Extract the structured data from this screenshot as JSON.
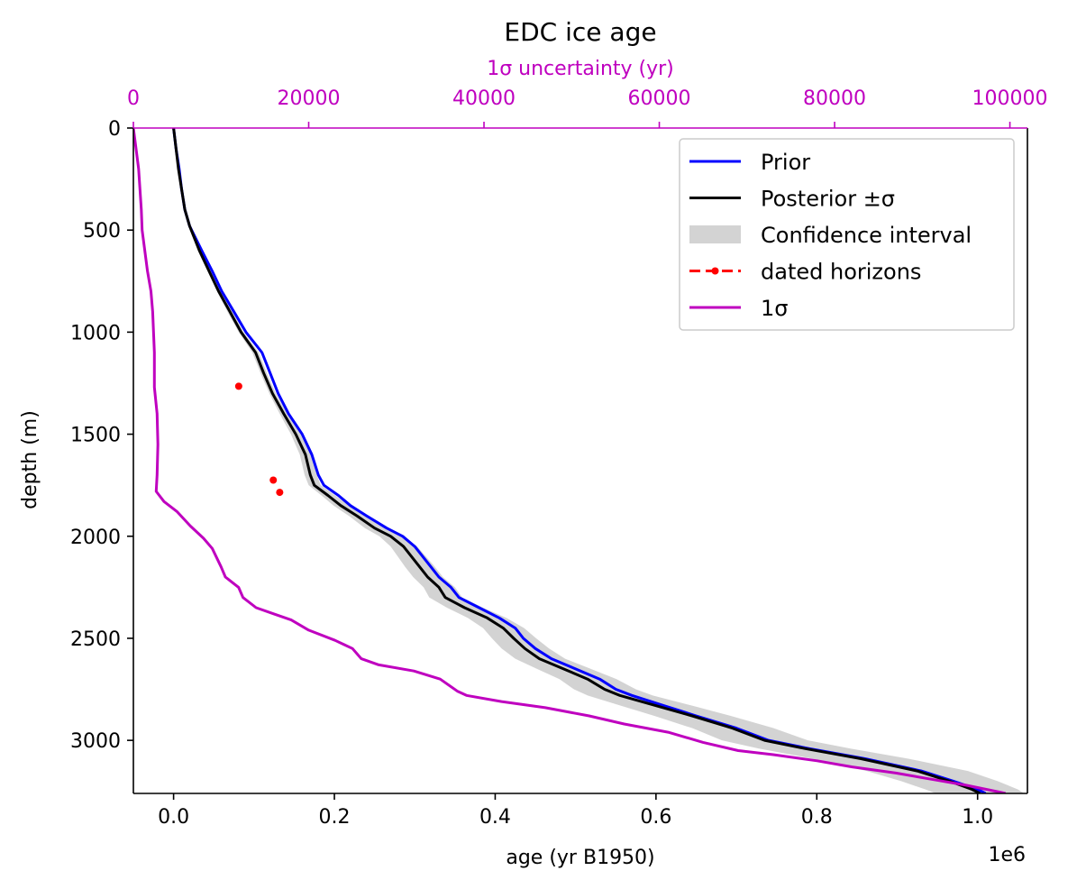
{
  "chart_data": {
    "type": "line",
    "title": "EDC ice age",
    "xlabel": "age (yr B1950)",
    "x_offset_label": "1e6",
    "ylabel": "depth (m)",
    "top_xlabel": "1σ uncertainty (yr)",
    "xlim": [
      -50000,
      1062000
    ],
    "ylim": [
      3260,
      0
    ],
    "top_xlim": [
      0,
      102000
    ],
    "x_ticks": [
      0,
      200000,
      400000,
      600000,
      800000,
      1000000
    ],
    "x_tick_labels": [
      "0.0",
      "0.2",
      "0.4",
      "0.6",
      "0.8",
      "1.0"
    ],
    "y_ticks": [
      0,
      500,
      1000,
      1500,
      2000,
      2500,
      3000
    ],
    "y_tick_labels": [
      "0",
      "500",
      "1000",
      "1500",
      "2000",
      "2500",
      "3000"
    ],
    "top_ticks": [
      0,
      20000,
      40000,
      60000,
      80000,
      100000
    ],
    "top_tick_labels": [
      "0",
      "20000",
      "40000",
      "60000",
      "80000",
      "100000"
    ],
    "colors": {
      "prior": "#0000ff",
      "posterior": "#000000",
      "confidence": "#d3d3d3",
      "horizons": "#ff0000",
      "sigma": "#bf00bf",
      "top_axis": "#bf00bf"
    },
    "legend_position": "top-right",
    "legend": [
      "Prior",
      "Posterior ±σ",
      "Confidence interval",
      "dated horizons",
      "1σ"
    ],
    "series": [
      {
        "name": "Prior",
        "axis": "bottom",
        "points": [
          [
            0,
            0
          ],
          [
            3000,
            100
          ],
          [
            7000,
            200
          ],
          [
            10000,
            300
          ],
          [
            14000,
            400
          ],
          [
            20000,
            480
          ],
          [
            35000,
            600
          ],
          [
            48000,
            700
          ],
          [
            60000,
            800
          ],
          [
            75000,
            900
          ],
          [
            90000,
            1000
          ],
          [
            110000,
            1100
          ],
          [
            120000,
            1200
          ],
          [
            130000,
            1300
          ],
          [
            143000,
            1400
          ],
          [
            160000,
            1500
          ],
          [
            172000,
            1600
          ],
          [
            180000,
            1700
          ],
          [
            187000,
            1750
          ],
          [
            205000,
            1800
          ],
          [
            220000,
            1850
          ],
          [
            240000,
            1900
          ],
          [
            265000,
            1960
          ],
          [
            285000,
            2000
          ],
          [
            300000,
            2050
          ],
          [
            310000,
            2100
          ],
          [
            320000,
            2150
          ],
          [
            330000,
            2200
          ],
          [
            345000,
            2250
          ],
          [
            355000,
            2300
          ],
          [
            380000,
            2350
          ],
          [
            405000,
            2400
          ],
          [
            425000,
            2450
          ],
          [
            435000,
            2500
          ],
          [
            450000,
            2550
          ],
          [
            470000,
            2600
          ],
          [
            500000,
            2650
          ],
          [
            530000,
            2700
          ],
          [
            550000,
            2750
          ],
          [
            570000,
            2780
          ],
          [
            610000,
            2830
          ],
          [
            650000,
            2880
          ],
          [
            700000,
            2940
          ],
          [
            740000,
            3000
          ],
          [
            790000,
            3040
          ],
          [
            860000,
            3090
          ],
          [
            930000,
            3150
          ],
          [
            970000,
            3200
          ],
          [
            1000000,
            3240
          ],
          [
            1010000,
            3260
          ]
        ]
      },
      {
        "name": "Posterior ±σ",
        "axis": "bottom",
        "points": [
          [
            0,
            0
          ],
          [
            3000,
            100
          ],
          [
            6000,
            200
          ],
          [
            10000,
            300
          ],
          [
            14000,
            400
          ],
          [
            20000,
            480
          ],
          [
            32000,
            600
          ],
          [
            44000,
            700
          ],
          [
            56000,
            800
          ],
          [
            70000,
            900
          ],
          [
            84000,
            1000
          ],
          [
            102000,
            1100
          ],
          [
            112000,
            1200
          ],
          [
            123000,
            1300
          ],
          [
            137000,
            1400
          ],
          [
            152000,
            1500
          ],
          [
            164000,
            1600
          ],
          [
            170000,
            1700
          ],
          [
            175000,
            1750
          ],
          [
            192000,
            1800
          ],
          [
            208000,
            1850
          ],
          [
            228000,
            1900
          ],
          [
            250000,
            1960
          ],
          [
            270000,
            2000
          ],
          [
            286000,
            2050
          ],
          [
            296000,
            2100
          ],
          [
            306000,
            2150
          ],
          [
            316000,
            2200
          ],
          [
            330000,
            2250
          ],
          [
            338000,
            2300
          ],
          [
            362000,
            2350
          ],
          [
            390000,
            2400
          ],
          [
            410000,
            2450
          ],
          [
            423000,
            2500
          ],
          [
            437000,
            2550
          ],
          [
            455000,
            2600
          ],
          [
            485000,
            2650
          ],
          [
            515000,
            2700
          ],
          [
            536000,
            2750
          ],
          [
            555000,
            2780
          ],
          [
            600000,
            2830
          ],
          [
            645000,
            2880
          ],
          [
            695000,
            2940
          ],
          [
            735000,
            3000
          ],
          [
            785000,
            3040
          ],
          [
            855000,
            3090
          ],
          [
            925000,
            3150
          ],
          [
            965000,
            3200
          ],
          [
            993000,
            3240
          ],
          [
            1003000,
            3260
          ]
        ]
      },
      {
        "name": "Confidence interval",
        "axis": "bottom",
        "lower": [
          [
            0,
            0
          ],
          [
            3000,
            100
          ],
          [
            6000,
            200
          ],
          [
            9000,
            300
          ],
          [
            13000,
            400
          ],
          [
            19000,
            480
          ],
          [
            30000,
            600
          ],
          [
            42000,
            700
          ],
          [
            54000,
            800
          ],
          [
            67000,
            900
          ],
          [
            81000,
            1000
          ],
          [
            98000,
            1100
          ],
          [
            108000,
            1200
          ],
          [
            119000,
            1300
          ],
          [
            132000,
            1400
          ],
          [
            146000,
            1500
          ],
          [
            157000,
            1600
          ],
          [
            163000,
            1700
          ],
          [
            168000,
            1750
          ],
          [
            184000,
            1800
          ],
          [
            199000,
            1850
          ],
          [
            218000,
            1900
          ],
          [
            238000,
            1960
          ],
          [
            256000,
            2000
          ],
          [
            270000,
            2050
          ],
          [
            279000,
            2100
          ],
          [
            288000,
            2150
          ],
          [
            298000,
            2200
          ],
          [
            311000,
            2250
          ],
          [
            318000,
            2300
          ],
          [
            340000,
            2350
          ],
          [
            366000,
            2400
          ],
          [
            385000,
            2450
          ],
          [
            396000,
            2500
          ],
          [
            408000,
            2550
          ],
          [
            425000,
            2600
          ],
          [
            452000,
            2650
          ],
          [
            480000,
            2700
          ],
          [
            498000,
            2750
          ],
          [
            515000,
            2780
          ],
          [
            556000,
            2830
          ],
          [
            598000,
            2880
          ],
          [
            645000,
            2940
          ],
          [
            682000,
            3000
          ],
          [
            728000,
            3040
          ],
          [
            795000,
            3090
          ],
          [
            862000,
            3150
          ],
          [
            905000,
            3200
          ],
          [
            935000,
            3240
          ],
          [
            948000,
            3260
          ]
        ],
        "upper": [
          [
            0,
            0
          ],
          [
            3000,
            100
          ],
          [
            7000,
            200
          ],
          [
            11000,
            300
          ],
          [
            15000,
            400
          ],
          [
            21000,
            480
          ],
          [
            34000,
            600
          ],
          [
            46000,
            700
          ],
          [
            58000,
            800
          ],
          [
            73000,
            900
          ],
          [
            87000,
            1000
          ],
          [
            106000,
            1100
          ],
          [
            116000,
            1200
          ],
          [
            127000,
            1300
          ],
          [
            142000,
            1400
          ],
          [
            158000,
            1500
          ],
          [
            171000,
            1600
          ],
          [
            178000,
            1700
          ],
          [
            183000,
            1750
          ],
          [
            201000,
            1800
          ],
          [
            218000,
            1850
          ],
          [
            239000,
            1900
          ],
          [
            263000,
            1960
          ],
          [
            285000,
            2000
          ],
          [
            303000,
            2050
          ],
          [
            314000,
            2100
          ],
          [
            325000,
            2150
          ],
          [
            335000,
            2200
          ],
          [
            350000,
            2250
          ],
          [
            359000,
            2300
          ],
          [
            385000,
            2350
          ],
          [
            414000,
            2400
          ],
          [
            436000,
            2450
          ],
          [
            451000,
            2500
          ],
          [
            467000,
            2550
          ],
          [
            487000,
            2600
          ],
          [
            519000,
            2650
          ],
          [
            551000,
            2700
          ],
          [
            575000,
            2750
          ],
          [
            596000,
            2780
          ],
          [
            645000,
            2830
          ],
          [
            693000,
            2880
          ],
          [
            746000,
            2940
          ],
          [
            789000,
            3000
          ],
          [
            842000,
            3040
          ],
          [
            914000,
            3090
          ],
          [
            988000,
            3150
          ],
          [
            1025000,
            3200
          ],
          [
            1050000,
            3240
          ],
          [
            1058000,
            3260
          ]
        ]
      },
      {
        "name": "dated horizons",
        "axis": "bottom",
        "points": [
          [
            81000,
            1265
          ],
          [
            124000,
            1725
          ],
          [
            132000,
            1785
          ]
        ]
      },
      {
        "name": "1σ",
        "axis": "top",
        "points": [
          [
            0,
            0
          ],
          [
            300,
            100
          ],
          [
            600,
            200
          ],
          [
            900,
            400
          ],
          [
            1000,
            500
          ],
          [
            1600,
            700
          ],
          [
            2000,
            800
          ],
          [
            2200,
            900
          ],
          [
            2400,
            1100
          ],
          [
            2400,
            1270
          ],
          [
            2700,
            1400
          ],
          [
            2800,
            1550
          ],
          [
            2700,
            1700
          ],
          [
            2600,
            1780
          ],
          [
            3500,
            1830
          ],
          [
            5000,
            1880
          ],
          [
            6500,
            1950
          ],
          [
            8000,
            2010
          ],
          [
            9000,
            2060
          ],
          [
            10000,
            2150
          ],
          [
            10500,
            2200
          ],
          [
            12000,
            2250
          ],
          [
            12500,
            2300
          ],
          [
            14000,
            2350
          ],
          [
            16000,
            2380
          ],
          [
            18000,
            2410
          ],
          [
            20000,
            2460
          ],
          [
            23000,
            2510
          ],
          [
            25000,
            2550
          ],
          [
            26000,
            2600
          ],
          [
            28000,
            2630
          ],
          [
            32000,
            2660
          ],
          [
            35000,
            2700
          ],
          [
            37000,
            2760
          ],
          [
            38000,
            2780
          ],
          [
            42000,
            2810
          ],
          [
            47000,
            2840
          ],
          [
            52000,
            2880
          ],
          [
            56000,
            2920
          ],
          [
            61000,
            2960
          ],
          [
            65000,
            3010
          ],
          [
            69000,
            3050
          ],
          [
            73000,
            3070
          ],
          [
            78000,
            3100
          ],
          [
            82000,
            3130
          ],
          [
            87000,
            3160
          ],
          [
            91000,
            3190
          ],
          [
            95000,
            3220
          ],
          [
            99000,
            3255
          ],
          [
            99500,
            3260
          ]
        ]
      }
    ]
  }
}
